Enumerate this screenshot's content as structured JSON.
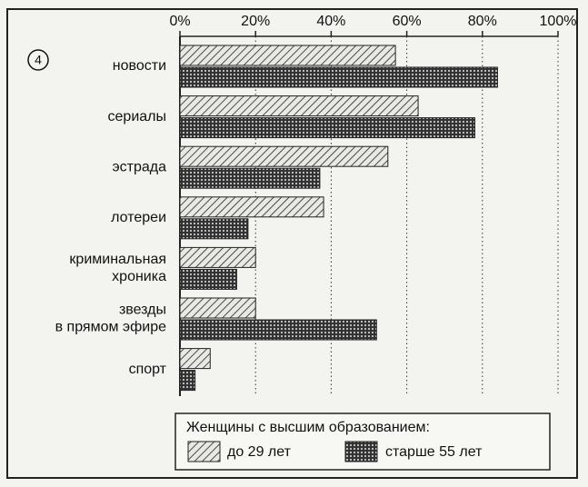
{
  "chart_data": {
    "type": "hbar",
    "annotation": "4",
    "categories": [
      "новости",
      "сериалы",
      "эстрада",
      "лотереи",
      "криминальная\nхроника",
      "звезды\nв прямом эфире",
      "спорт"
    ],
    "series": [
      {
        "name": "до 29 лет",
        "color": "hatch",
        "values": [
          57,
          63,
          55,
          38,
          20,
          20,
          8
        ]
      },
      {
        "name": "старше 55 лет",
        "color": "crosshatch",
        "values": [
          84,
          78,
          37,
          18,
          15,
          52,
          4
        ]
      }
    ],
    "legend_title": "Женщины с высшим образованием:",
    "xlim": [
      0,
      100
    ],
    "xticks": [
      {
        "value": 0,
        "label": "0%"
      },
      {
        "value": 20,
        "label": "20%"
      },
      {
        "value": 40,
        "label": "40%"
      },
      {
        "value": 60,
        "label": "60%"
      },
      {
        "value": 80,
        "label": "80%"
      },
      {
        "value": 100,
        "label": "100%"
      }
    ],
    "grid": true
  }
}
